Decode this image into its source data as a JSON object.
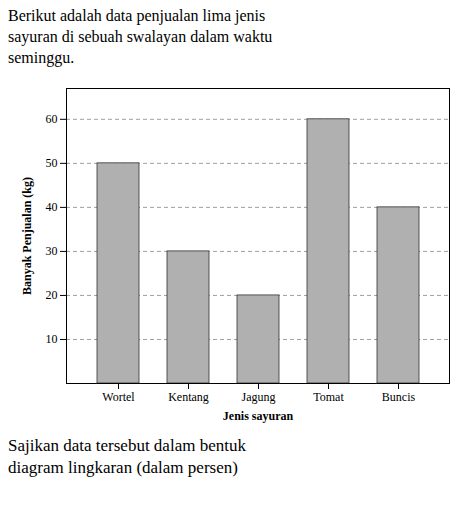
{
  "chart_data": {
    "type": "bar",
    "title": "Berikut adalah data penjualan lima jenis\nsayuran di sebuah swalayan dalam waktu\nseminggu.",
    "annotations": [
      "Sajikan data tersebut dalam bentuk\ndiagram lingkaran (dalam persen)"
    ],
    "categories": [
      "Wortel",
      "Kentang",
      "Jagung",
      "Tomat",
      "Buncis"
    ],
    "values": [
      50,
      30,
      20,
      60,
      40
    ],
    "color": "#b0b0b0",
    "xlabel": "Jenis sayuran",
    "ylabel": "Banyak Penjualan (kg)",
    "ylim": [
      0,
      67
    ],
    "yticks": [
      10,
      20,
      30,
      40,
      50,
      60
    ],
    "grid": true
  }
}
